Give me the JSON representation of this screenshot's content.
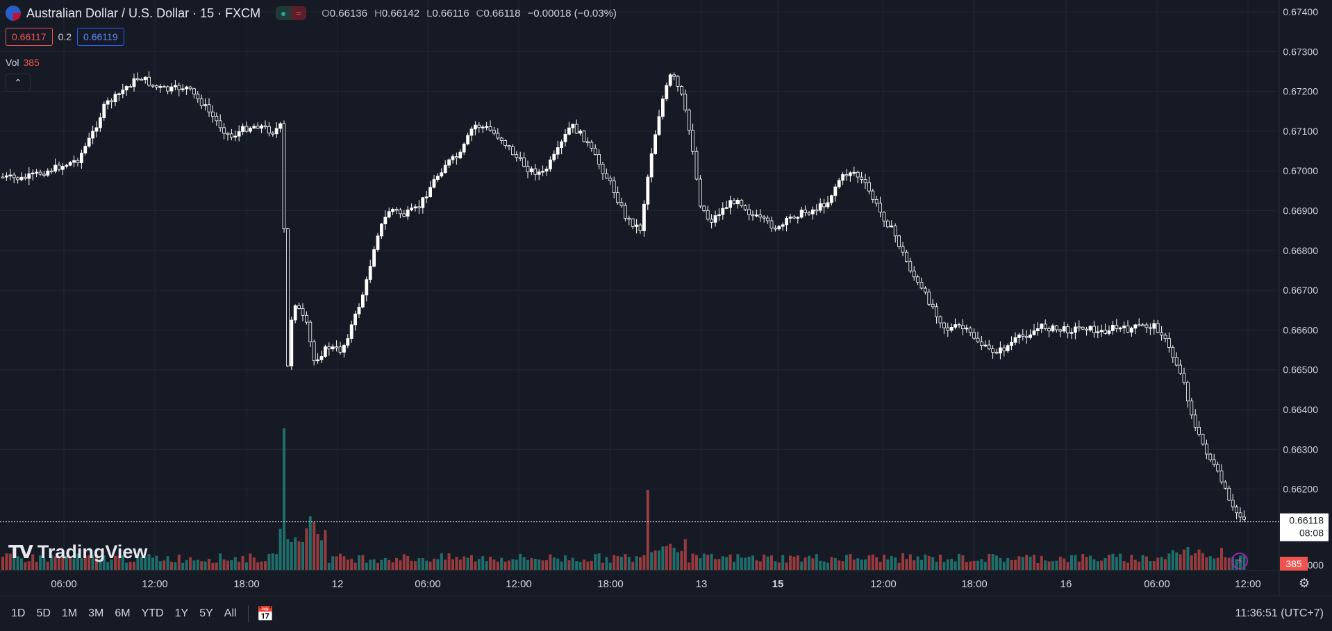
{
  "header": {
    "symbol": "Australian Dollar / U.S. Dollar · 15 · FXCM",
    "ohlc": {
      "open_label": "O",
      "open": "0.66136",
      "high_label": "H",
      "high": "0.66142",
      "low_label": "L",
      "low": "0.66116",
      "close_label": "C",
      "close": "0.66118",
      "change": "−0.00018 (−0.03%)"
    },
    "sell": "0.66117",
    "spread": "0.2",
    "buy": "0.66119",
    "vol_label": "Vol",
    "vol_value": "385",
    "logo": "TradingView"
  },
  "toolbar": {
    "ranges": [
      "1D",
      "5D",
      "1M",
      "3M",
      "6M",
      "YTD",
      "1Y",
      "5Y",
      "All"
    ],
    "clock": "11:36:51 (UTC+7)"
  },
  "colors": {
    "bg": "#161a25",
    "grid": "#232733",
    "candle": "#ffffff",
    "up": "#26a69a",
    "down": "#ef5350"
  },
  "chart_data": {
    "type": "candlestick",
    "y_axis": {
      "min": 0.6612,
      "max": 0.674,
      "ticks": [
        "0.67400",
        "0.67300",
        "0.67200",
        "0.67100",
        "0.67000",
        "0.66900",
        "0.66800",
        "0.66700",
        "0.66600",
        "0.66500",
        "0.66400",
        "0.66300",
        "0.66200"
      ]
    },
    "x_axis": {
      "ticks": [
        "06:00",
        "12:00",
        "18:00",
        "12",
        "06:00",
        "12:00",
        "18:00",
        "13",
        "15",
        "12:00",
        "18:00",
        "16",
        "06:00",
        "12:00"
      ],
      "bold_tick": "15"
    },
    "last_price": {
      "value": "0.66118",
      "countdown": "08:08"
    },
    "last_volume": "385",
    "volume_axis_fragment": "000",
    "series_close_path": [
      [
        0.6698,
        20
      ],
      [
        0.67,
        24
      ],
      [
        0.6698,
        24
      ],
      [
        0.6701,
        12
      ],
      [
        0.6703,
        16
      ],
      [
        0.6708,
        16
      ],
      [
        0.6716,
        16
      ],
      [
        0.6721,
        16
      ],
      [
        0.6724,
        12
      ],
      [
        0.6722,
        14
      ],
      [
        0.6719,
        12
      ],
      [
        0.6722,
        10
      ],
      [
        0.6716,
        10
      ],
      [
        0.671,
        12
      ],
      [
        0.6707,
        12
      ],
      [
        0.6711,
        10
      ],
      [
        0.6708,
        6
      ],
      [
        0.671,
        6
      ],
      [
        0.6664,
        2
      ],
      [
        0.6662,
        4
      ],
      [
        0.665,
        6
      ],
      [
        0.6662,
        6
      ],
      [
        0.6652,
        8
      ],
      [
        0.6658,
        8
      ],
      [
        0.6668,
        8
      ],
      [
        0.6682,
        12
      ],
      [
        0.6887,
        1
      ],
      [
        0.689,
        12
      ],
      [
        0.688,
        12
      ],
      [
        0.6895,
        10
      ],
      [
        0.6903,
        12
      ],
      [
        0.6912,
        14
      ],
      [
        0.691,
        10
      ],
      [
        0.69,
        14
      ],
      [
        0.6905,
        10
      ],
      [
        0.6895,
        14
      ],
      [
        0.6905,
        12
      ],
      [
        0.6912,
        8
      ],
      [
        0.6908,
        10
      ],
      [
        0.6895,
        10
      ],
      [
        0.6885,
        8
      ],
      [
        0.6875,
        6
      ],
      [
        0.67,
        1
      ],
      [
        0.6716,
        2
      ],
      [
        0.6724,
        4
      ],
      [
        0.671,
        6
      ],
      [
        0.6708,
        6
      ],
      [
        0.6692,
        8
      ],
      [
        0.6688,
        8
      ],
      [
        0.669,
        10
      ],
      [
        0.6692,
        10
      ],
      [
        0.6686,
        12
      ],
      [
        0.6685,
        10
      ],
      [
        0.6684,
        8
      ],
      [
        0.6683,
        8
      ],
      [
        0.669,
        10
      ],
      [
        0.6695,
        10
      ],
      [
        0.6701,
        10
      ],
      [
        0.6703,
        6
      ],
      [
        0.6696,
        8
      ],
      [
        0.669,
        10
      ],
      [
        0.6693,
        10
      ],
      [
        0.6688,
        8
      ],
      [
        0.668,
        8
      ],
      [
        0.6672,
        10
      ],
      [
        0.6668,
        8
      ],
      [
        0.666,
        10
      ],
      [
        0.6652,
        10
      ],
      [
        0.6664,
        12
      ],
      [
        0.6655,
        8
      ],
      [
        0.6652,
        8
      ],
      [
        0.6656,
        10
      ],
      [
        0.666,
        10
      ],
      [
        0.6659,
        8
      ],
      [
        0.6658,
        8
      ],
      [
        0.666,
        10
      ],
      [
        0.6658,
        10
      ],
      [
        0.665,
        12
      ],
      [
        0.664,
        14
      ],
      [
        0.6628,
        16
      ],
      [
        0.663,
        12
      ],
      [
        0.6622,
        10
      ],
      [
        0.6612,
        8
      ]
    ],
    "volume_spikes": [
      {
        "at": "18:00 → 12",
        "height_ratio": 1.0,
        "color": "down"
      },
      {
        "at": "18:00 → 13",
        "height_ratio": 0.56,
        "color": "up"
      }
    ]
  }
}
